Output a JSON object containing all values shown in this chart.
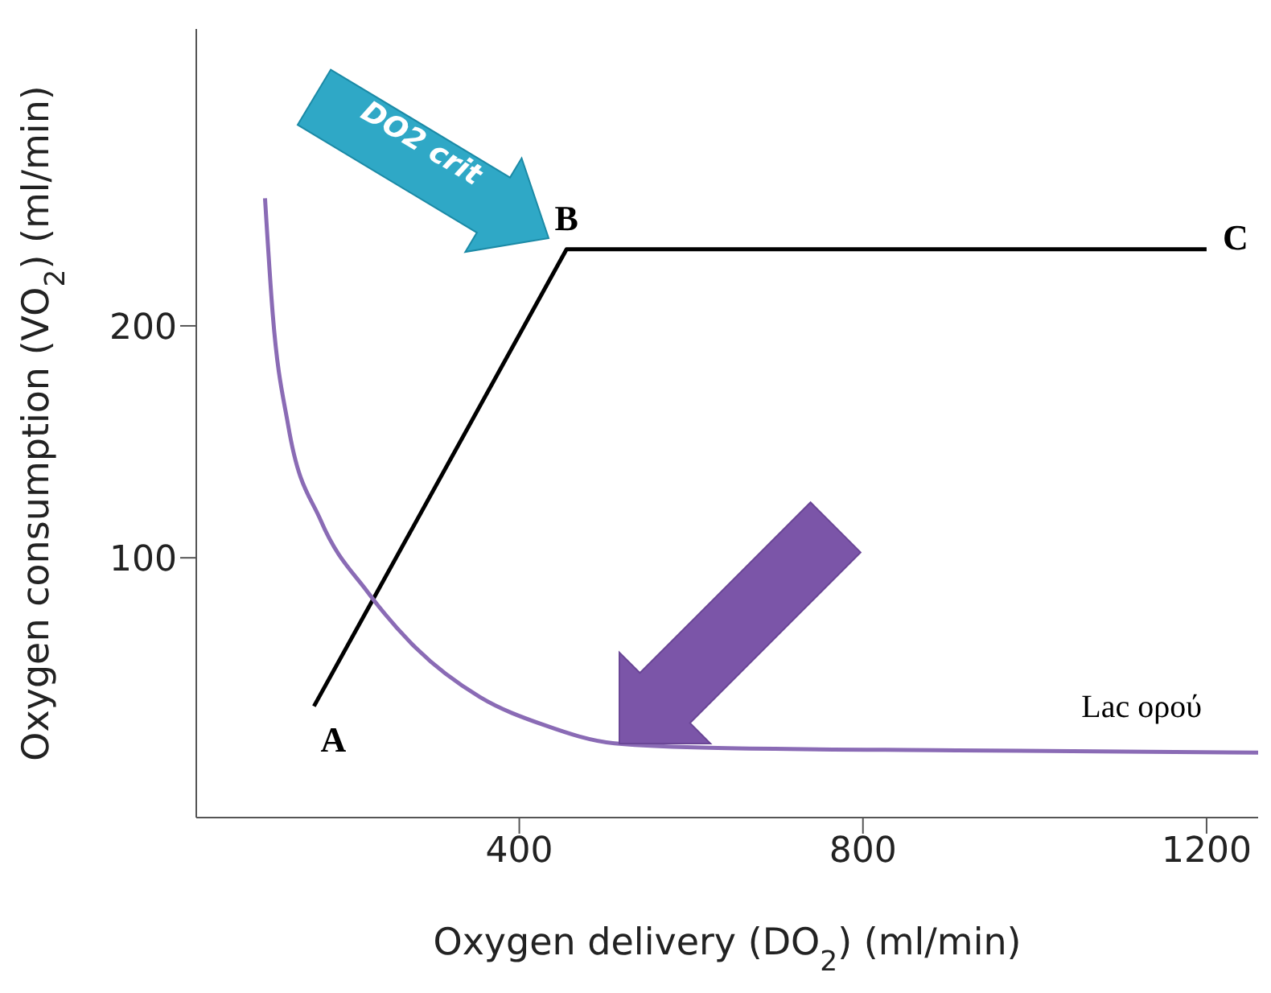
{
  "chart_data": {
    "type": "line",
    "xlabel": "Oxygen delivery (DO$_{2}$) (ml/min)",
    "ylabel": "Oxygen consumption (VO$_{2}$) (ml/min)",
    "xlim": [
      24,
      1260
    ],
    "xticks": [
      400,
      800,
      1200
    ],
    "ylim": [
      -12,
      328
    ],
    "yticks": [
      100,
      200
    ],
    "series": [
      {
        "color": "#000000",
        "x": [
          161,
          455,
          1200
        ],
        "values": [
          36,
          233,
          233
        ]
      },
      {
        "name": "Lac ορού",
        "color": "#8a6bb5",
        "x": [
          104,
          113,
          131,
          169,
          224,
          280,
          354,
          428,
          511,
          631,
          909,
          1260
        ],
        "values": [
          255,
          205,
          157,
          116,
          85,
          61,
          40,
          28,
          20,
          18,
          17,
          16
        ]
      }
    ],
    "annotations": [
      {
        "text": "A",
        "x": 161,
        "y": 36
      },
      {
        "text": "B",
        "x": 455,
        "y": 233
      },
      {
        "text": "C",
        "x": 1200,
        "y": 233
      },
      "DO2 crit"
    ]
  }
}
